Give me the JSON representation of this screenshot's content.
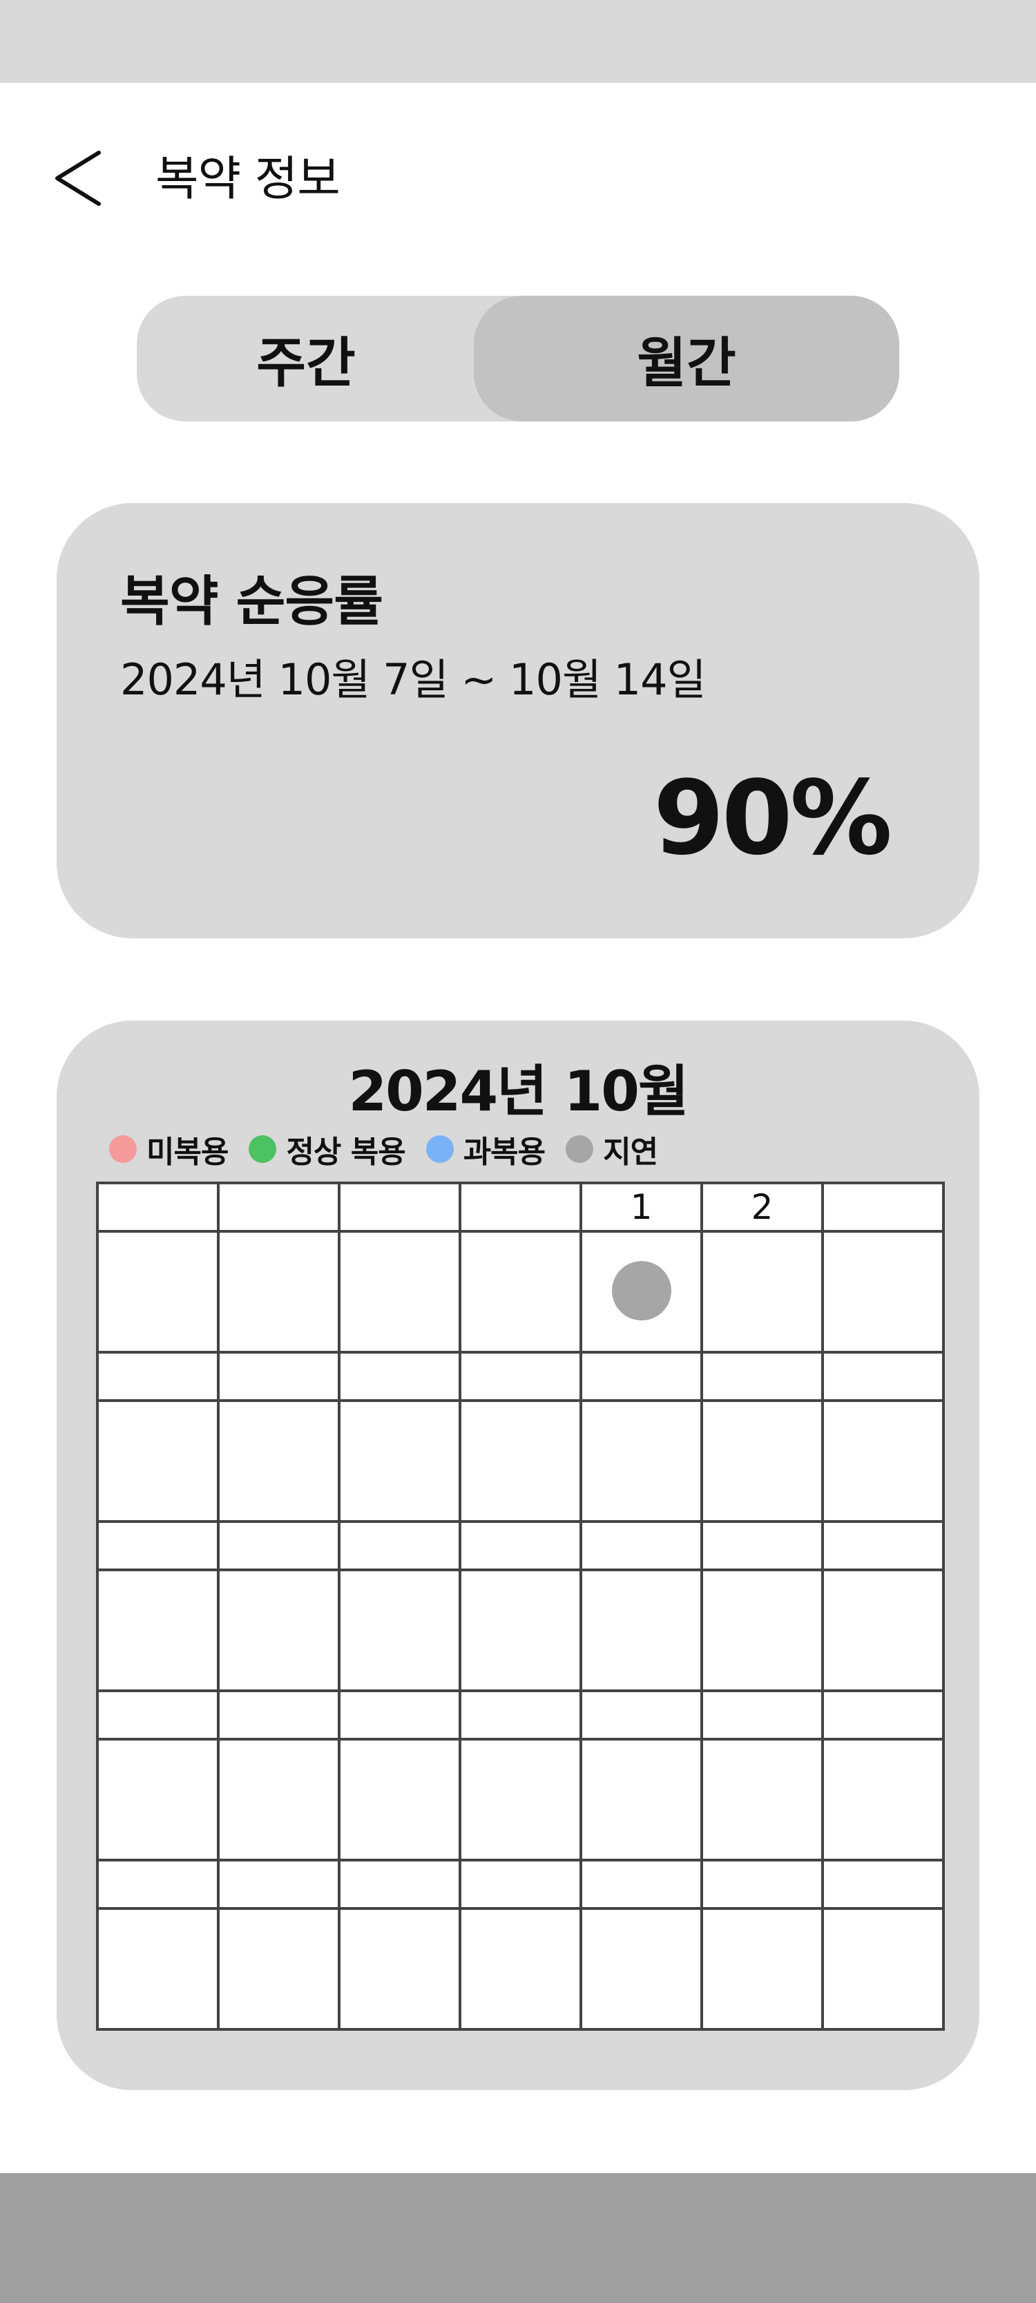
{
  "header": {
    "back_icon": "chevron-left-icon",
    "title": "복약 정보"
  },
  "toggle": {
    "weekly_label": "주간",
    "monthly_label": "월간",
    "selected": "월간"
  },
  "adherence": {
    "title": "복약 순응률",
    "range": "2024년 10월 7일 ~ 10월 14일",
    "value": "90%"
  },
  "calendar": {
    "title": "2024년 10월",
    "legend": [
      {
        "label": "미복용",
        "color": "#f59a9a"
      },
      {
        "label": "정상 복용",
        "color": "#4cc263"
      },
      {
        "label": "과복용",
        "color": "#7ab2f5"
      },
      {
        "label": "지연",
        "color": "#a6a6a6"
      }
    ],
    "weeks": [
      {
        "dates": [
          "",
          "",
          "",
          "",
          "1",
          "2",
          ""
        ],
        "status": [
          "",
          "",
          "",
          "",
          "#a6a6a6",
          "",
          ""
        ]
      },
      {
        "dates": [
          "",
          "",
          "",
          "",
          "",
          "",
          ""
        ],
        "status": [
          "",
          "",
          "",
          "",
          "",
          "",
          ""
        ]
      },
      {
        "dates": [
          "",
          "",
          "",
          "",
          "",
          "",
          ""
        ],
        "status": [
          "",
          "",
          "",
          "",
          "",
          "",
          ""
        ]
      },
      {
        "dates": [
          "",
          "",
          "",
          "",
          "",
          "",
          ""
        ],
        "status": [
          "",
          "",
          "",
          "",
          "",
          "",
          ""
        ]
      },
      {
        "dates": [
          "",
          "",
          "",
          "",
          "",
          "",
          ""
        ],
        "status": [
          "",
          "",
          "",
          "",
          "",
          "",
          ""
        ]
      }
    ]
  },
  "colors": {
    "status_bar": "#d9d9d9",
    "card_bg": "#d9d9d9",
    "toggle_selected": "#c2c2c2",
    "bottom_bar": "#9f9f9f"
  }
}
